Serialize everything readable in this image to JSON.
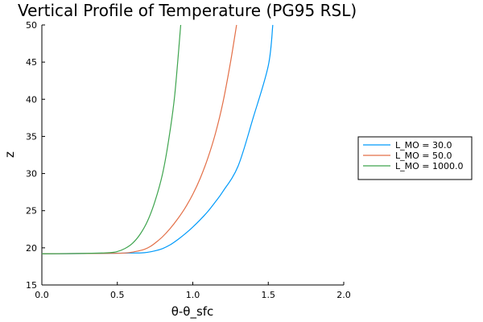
{
  "chart_data": {
    "type": "line",
    "title": "Vertical Profile of Temperature (PG95 RSL)",
    "xlabel": "θ-θ_sfc",
    "ylabel": "z",
    "xlim": [
      0,
      2
    ],
    "ylim": [
      15,
      50
    ],
    "xticks": [
      "0.0",
      "0.5",
      "1.0",
      "1.5",
      "2.0"
    ],
    "xtick_values": [
      0,
      0.5,
      1.0,
      1.5,
      2.0
    ],
    "yticks": [
      "15",
      "20",
      "25",
      "30",
      "35",
      "40",
      "45",
      "50"
    ],
    "ytick_values": [
      15,
      20,
      25,
      30,
      35,
      40,
      45,
      50
    ],
    "grid": false,
    "legend_position": "outer-right",
    "series": [
      {
        "name": "L_MO = 30.0",
        "color": "#009AFA",
        "x": [
          0,
          0.4,
          0.6,
          0.68,
          0.75,
          0.8,
          0.85,
          0.9,
          0.95,
          1.0,
          1.05,
          1.1,
          1.15,
          1.2,
          1.3,
          1.4,
          1.5,
          1.53
        ],
        "y": [
          19.2,
          19.25,
          19.3,
          19.35,
          19.6,
          19.9,
          20.4,
          21.1,
          21.9,
          22.8,
          23.8,
          24.9,
          26.2,
          27.6,
          31.0,
          37.5,
          44.5,
          50.0
        ]
      },
      {
        "name": "L_MO = 50.0",
        "color": "#E36F47",
        "x": [
          0,
          0.4,
          0.55,
          0.62,
          0.68,
          0.72,
          0.76,
          0.8,
          0.85,
          0.9,
          0.95,
          1.0,
          1.05,
          1.1,
          1.15,
          1.2,
          1.25,
          1.29
        ],
        "y": [
          19.2,
          19.25,
          19.3,
          19.5,
          19.8,
          20.2,
          20.8,
          21.5,
          22.6,
          23.9,
          25.4,
          27.2,
          29.4,
          32.1,
          35.4,
          39.6,
          45.0,
          50.0
        ]
      },
      {
        "name": "L_MO = 1000.0",
        "color": "#3EA44E",
        "x": [
          0,
          0.3,
          0.45,
          0.5,
          0.55,
          0.6,
          0.65,
          0.7,
          0.75,
          0.8,
          0.84,
          0.88,
          0.92
        ],
        "y": [
          19.2,
          19.25,
          19.35,
          19.5,
          19.9,
          20.6,
          21.8,
          23.6,
          26.3,
          30.0,
          34.5,
          40.5,
          50.0
        ]
      }
    ]
  }
}
